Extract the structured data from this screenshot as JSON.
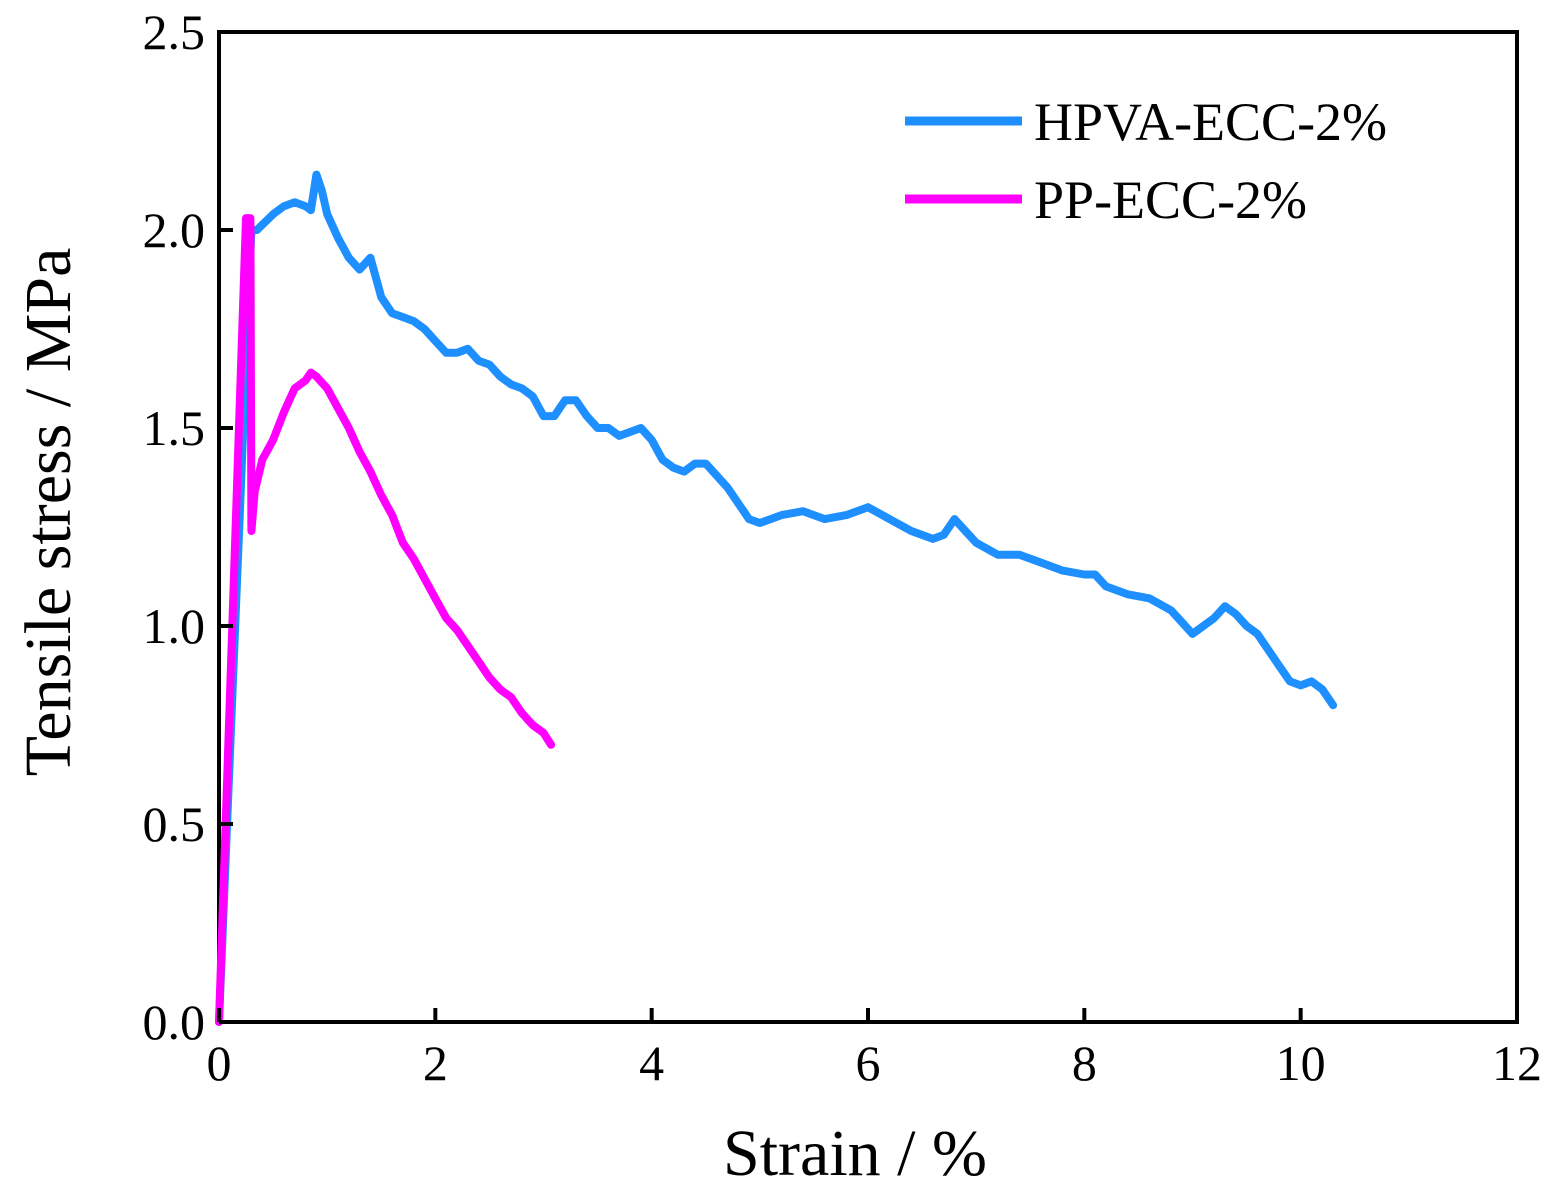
{
  "chart_data": {
    "type": "line",
    "title": "",
    "xlabel": "Strain / %",
    "ylabel": "Tensile stress / MPa",
    "xlim": [
      0,
      12
    ],
    "ylim": [
      0,
      2.5
    ],
    "xticks": [
      0,
      2,
      4,
      6,
      8,
      10,
      12
    ],
    "yticks": [
      0.0,
      0.5,
      1.0,
      1.5,
      2.0,
      2.5
    ],
    "xtick_labels": [
      "0",
      "2",
      "4",
      "6",
      "8",
      "10",
      "12"
    ],
    "ytick_labels": [
      "0.0",
      "0.5",
      "1.0",
      "1.5",
      "2.0",
      "2.5"
    ],
    "grid": false,
    "legend_position": "top-right",
    "series": [
      {
        "name": "HPVA-ECC-2%",
        "color": "#1e8fff",
        "x": [
          0.0,
          0.3,
          0.35,
          0.5,
          0.6,
          0.7,
          0.8,
          0.85,
          0.9,
          0.95,
          1.0,
          1.1,
          1.2,
          1.3,
          1.4,
          1.5,
          1.6,
          1.7,
          1.8,
          1.9,
          2.0,
          2.1,
          2.2,
          2.3,
          2.4,
          2.5,
          2.6,
          2.7,
          2.8,
          2.9,
          3.0,
          3.1,
          3.2,
          3.3,
          3.4,
          3.5,
          3.6,
          3.7,
          3.8,
          3.9,
          4.0,
          4.1,
          4.2,
          4.3,
          4.4,
          4.5,
          4.6,
          4.7,
          4.8,
          4.9,
          5.0,
          5.2,
          5.4,
          5.6,
          5.8,
          6.0,
          6.2,
          6.4,
          6.6,
          6.7,
          6.8,
          6.9,
          7.0,
          7.2,
          7.4,
          7.6,
          7.8,
          8.0,
          8.1,
          8.2,
          8.4,
          8.6,
          8.8,
          8.9,
          9.0,
          9.1,
          9.2,
          9.3,
          9.4,
          9.5,
          9.6,
          9.7,
          9.8,
          9.9,
          10.0,
          10.1,
          10.2,
          10.3
        ],
        "y": [
          0.0,
          2.0,
          2.0,
          2.04,
          2.06,
          2.07,
          2.06,
          2.05,
          2.14,
          2.1,
          2.04,
          1.98,
          1.93,
          1.9,
          1.93,
          1.83,
          1.79,
          1.78,
          1.77,
          1.75,
          1.72,
          1.69,
          1.69,
          1.7,
          1.67,
          1.66,
          1.63,
          1.61,
          1.6,
          1.58,
          1.53,
          1.53,
          1.57,
          1.57,
          1.53,
          1.5,
          1.5,
          1.48,
          1.49,
          1.5,
          1.47,
          1.42,
          1.4,
          1.39,
          1.41,
          1.41,
          1.38,
          1.35,
          1.31,
          1.27,
          1.26,
          1.28,
          1.29,
          1.27,
          1.28,
          1.3,
          1.27,
          1.24,
          1.22,
          1.23,
          1.27,
          1.24,
          1.21,
          1.18,
          1.18,
          1.16,
          1.14,
          1.13,
          1.13,
          1.1,
          1.08,
          1.07,
          1.04,
          1.01,
          0.98,
          1.0,
          1.02,
          1.05,
          1.03,
          1.0,
          0.98,
          0.94,
          0.9,
          0.86,
          0.85,
          0.86,
          0.84,
          0.8
        ]
      },
      {
        "name": "PP-ECC-2%",
        "color": "#ff00ff",
        "x": [
          0.0,
          0.25,
          0.29,
          0.3,
          0.33,
          0.4,
          0.5,
          0.6,
          0.7,
          0.8,
          0.85,
          0.9,
          1.0,
          1.1,
          1.2,
          1.3,
          1.4,
          1.5,
          1.6,
          1.7,
          1.8,
          1.9,
          2.0,
          2.1,
          2.2,
          2.3,
          2.4,
          2.5,
          2.6,
          2.7,
          2.8,
          2.9,
          3.0,
          3.07
        ],
        "y": [
          0.0,
          2.03,
          2.03,
          1.24,
          1.34,
          1.42,
          1.47,
          1.54,
          1.6,
          1.62,
          1.64,
          1.63,
          1.6,
          1.55,
          1.5,
          1.44,
          1.39,
          1.33,
          1.28,
          1.21,
          1.17,
          1.12,
          1.07,
          1.02,
          0.99,
          0.95,
          0.91,
          0.87,
          0.84,
          0.82,
          0.78,
          0.75,
          0.73,
          0.7
        ]
      }
    ]
  }
}
